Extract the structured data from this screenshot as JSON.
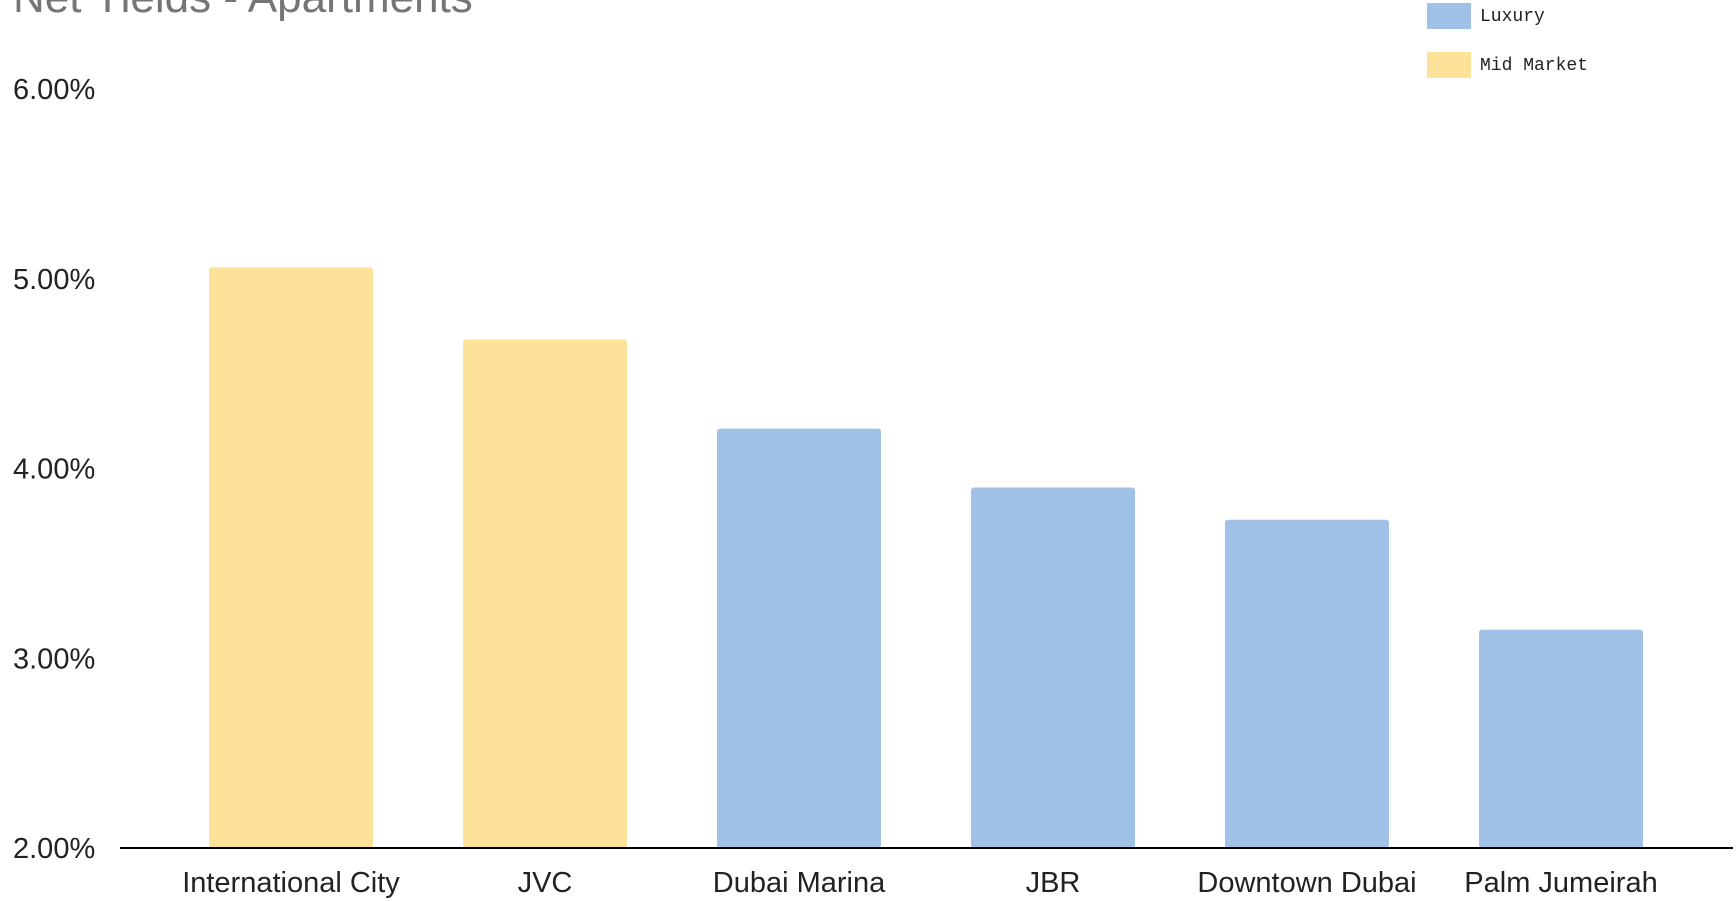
{
  "chart_data": {
    "type": "bar",
    "title": "Net Yields - Apartments",
    "categories": [
      "International City",
      "JVC",
      "Dubai Marina",
      "JBR",
      "Downtown Dubai",
      "Palm Jumeirah"
    ],
    "series": [
      {
        "name": "Luxury",
        "color": "#9fc2e6",
        "values": [
          null,
          null,
          4.21,
          3.9,
          3.73,
          3.15
        ]
      },
      {
        "name": "Mid Market",
        "color": "#fde399",
        "values": [
          5.06,
          4.68,
          null,
          null,
          null,
          null
        ]
      }
    ],
    "ylim": [
      2,
      6
    ],
    "yticks": [
      {
        "value": 2,
        "label": "2.00%"
      },
      {
        "value": 3,
        "label": "3.00%"
      },
      {
        "value": 4,
        "label": "4.00%"
      },
      {
        "value": 5,
        "label": "5.00%"
      },
      {
        "value": 6,
        "label": "6.00%"
      }
    ],
    "legend": "top-right"
  }
}
